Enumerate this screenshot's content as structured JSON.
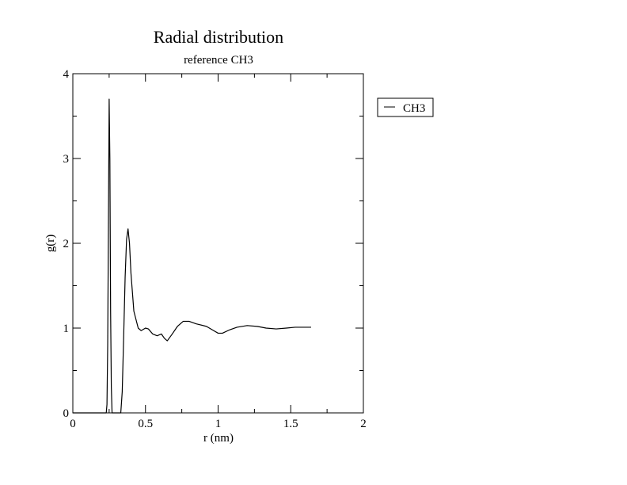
{
  "chart_data": {
    "type": "line",
    "title": "Radial distribution",
    "subtitle": "reference CH3",
    "xlabel": "r (nm)",
    "ylabel": "g(r)",
    "xlim": [
      0,
      2
    ],
    "ylim": [
      0,
      4
    ],
    "x_ticks": [
      "0",
      "0.5",
      "1",
      "1.5",
      "2"
    ],
    "y_ticks": [
      "0",
      "1",
      "2",
      "3",
      "4"
    ],
    "grid": false,
    "legend_position": "right",
    "series": [
      {
        "name": "CH3",
        "color": "#000000",
        "points": [
          [
            0.0,
            0.0
          ],
          [
            0.23,
            0.0
          ],
          [
            0.235,
            0.1
          ],
          [
            0.24,
            0.8
          ],
          [
            0.245,
            2.2
          ],
          [
            0.25,
            3.7
          ],
          [
            0.255,
            3.0
          ],
          [
            0.26,
            1.2
          ],
          [
            0.265,
            0.3
          ],
          [
            0.27,
            0.0
          ],
          [
            0.33,
            0.0
          ],
          [
            0.34,
            0.25
          ],
          [
            0.35,
            0.9
          ],
          [
            0.36,
            1.6
          ],
          [
            0.37,
            2.05
          ],
          [
            0.38,
            2.17
          ],
          [
            0.39,
            2.0
          ],
          [
            0.4,
            1.65
          ],
          [
            0.42,
            1.2
          ],
          [
            0.45,
            1.0
          ],
          [
            0.47,
            0.97
          ],
          [
            0.5,
            1.0
          ],
          [
            0.52,
            0.99
          ],
          [
            0.55,
            0.93
          ],
          [
            0.58,
            0.91
          ],
          [
            0.61,
            0.93
          ],
          [
            0.63,
            0.88
          ],
          [
            0.65,
            0.85
          ],
          [
            0.68,
            0.92
          ],
          [
            0.72,
            1.02
          ],
          [
            0.76,
            1.08
          ],
          [
            0.8,
            1.08
          ],
          [
            0.85,
            1.05
          ],
          [
            0.92,
            1.02
          ],
          [
            0.97,
            0.97
          ],
          [
            1.0,
            0.94
          ],
          [
            1.03,
            0.94
          ],
          [
            1.08,
            0.98
          ],
          [
            1.13,
            1.01
          ],
          [
            1.2,
            1.03
          ],
          [
            1.27,
            1.02
          ],
          [
            1.33,
            1.0
          ],
          [
            1.4,
            0.99
          ],
          [
            1.47,
            1.0
          ],
          [
            1.53,
            1.01
          ],
          [
            1.59,
            1.01
          ],
          [
            1.64,
            1.01
          ]
        ]
      }
    ]
  }
}
